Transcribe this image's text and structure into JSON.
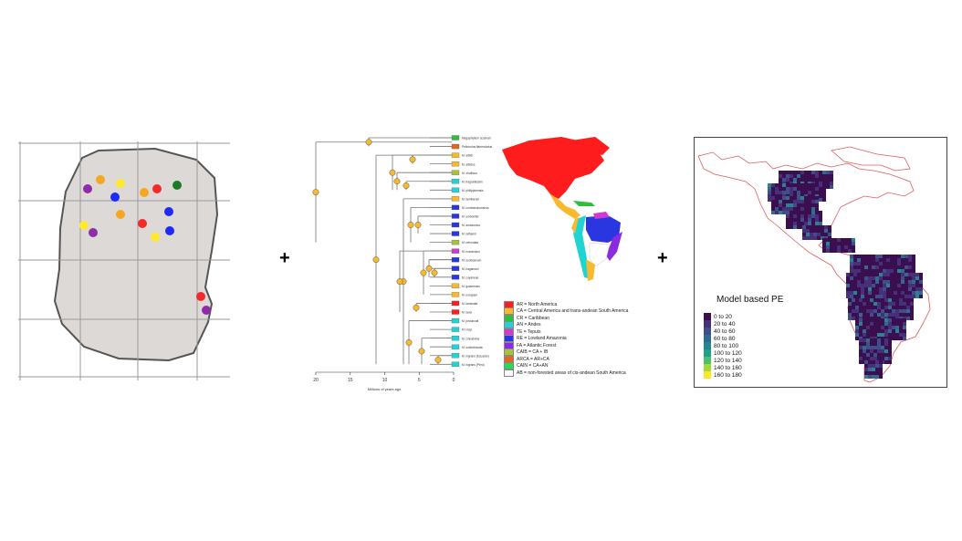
{
  "operators": {
    "plus_1": "+",
    "plus_2": "+"
  },
  "tree": {
    "tip_labels": [
      "Megaphyllum scabrum",
      "Peltonotus flammulatus",
      "M. albidi",
      "M. albidus",
      "M. zhuflicus",
      "M. fragrantissim",
      "M. philippinensis",
      "M. tamiliarum",
      "M. cornbasolocranus",
      "M. umbonifer",
      "M. amazonica",
      "M. lathamii",
      "M. refrontata",
      "M. manzinium",
      "M. scoticlanum",
      "M. nagamani",
      "M. cuyaneae",
      "M. guianensis",
      "M. eurapani",
      "M. laminalat",
      "M. tavei",
      "M. peduncati",
      "M. Hoyi",
      "M. cinnabrina",
      "M. subimbricata",
      "M. nigrans (Ecuador)",
      "M. nigrans (Peru)"
    ],
    "x_axis": {
      "ticks": [
        "20",
        "15",
        "10",
        "5",
        "0"
      ],
      "label": "Millions of years ago"
    }
  },
  "region_legend": [
    {
      "color": "#ff1c1c",
      "label": "AR = North America"
    },
    {
      "color": "#f7b92e",
      "label": "CA = Central America and trans-andean South America"
    },
    {
      "color": "#2fbf3a",
      "label": "CR = Caribbean"
    },
    {
      "color": "#20d4d4",
      "label": "AN = Andes"
    },
    {
      "color": "#d13ad1",
      "label": "TE = Tepuis"
    },
    {
      "color": "#2a36e0",
      "label": "RE = Lowland Amazonia"
    },
    {
      "color": "#8a2be2",
      "label": "FA = Atlantic Forest"
    },
    {
      "color": "#a8c23a",
      "label": "CAIB = CA + IB"
    },
    {
      "color": "#e8651c",
      "label": "ARCA = AR+CA"
    },
    {
      "color": "#22dd55",
      "label": "CAIN = CA+AN"
    },
    {
      "color": "#ffffff",
      "label": "AB = non-forested areas of cis-andean South America"
    }
  ],
  "pe_map": {
    "title": "Model based PE",
    "legend": [
      {
        "color": "#3b0f4f",
        "label": "0 to 20"
      },
      {
        "color": "#46307a",
        "label": "20 to 40"
      },
      {
        "color": "#3e4f8a",
        "label": "40 to 60"
      },
      {
        "color": "#336b8f",
        "label": "60 to 80"
      },
      {
        "color": "#26858e",
        "label": "80 to 100"
      },
      {
        "color": "#1fa187",
        "label": "100 to 120"
      },
      {
        "color": "#4ac16d",
        "label": "120 to 140"
      },
      {
        "color": "#a0da39",
        "label": "140 to 160"
      },
      {
        "color": "#fde725",
        "label": "160 to 180"
      }
    ]
  }
}
